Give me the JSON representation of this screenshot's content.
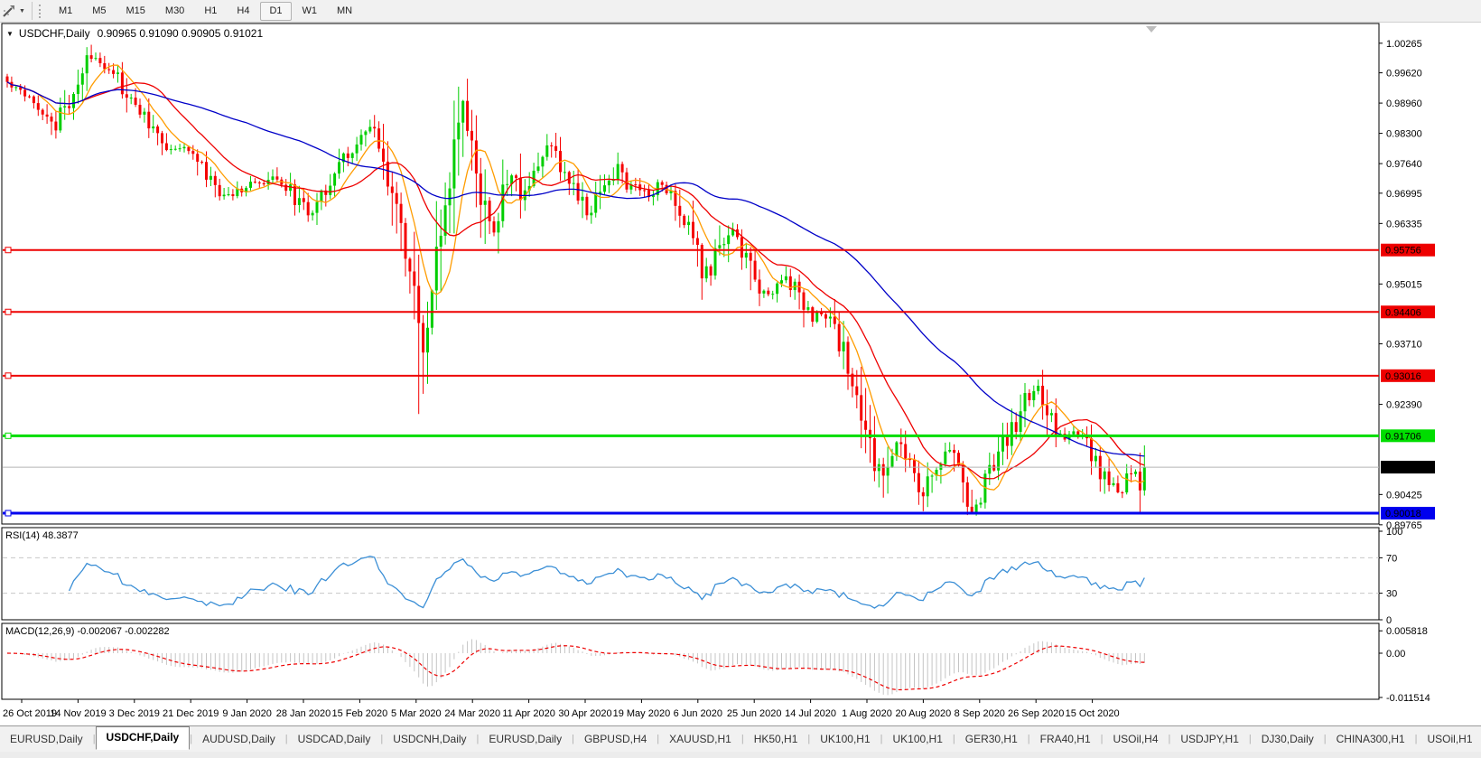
{
  "toolbar": {
    "timeframes": [
      "M1",
      "M5",
      "M15",
      "M30",
      "H1",
      "H4",
      "D1",
      "W1",
      "MN"
    ],
    "active_timeframe": "D1"
  },
  "header": {
    "symbol": "USDCHF,Daily",
    "ohlc": "0.90965 0.91090 0.90905 0.91021"
  },
  "indicators": {
    "rsi_label": "RSI(14) 48.3877",
    "macd_label": "MACD(12,26,9) -0.002067 -0.002282"
  },
  "tabs": {
    "items": [
      "EURUSD,Daily",
      "USDCHF,Daily",
      "AUDUSD,Daily",
      "USDCAD,Daily",
      "USDCNH,Daily",
      "EURUSD,Daily",
      "GBPUSD,H4",
      "XAUUSD,H1",
      "HK50,H1",
      "UK100,H1",
      "UK100,H1",
      "GER30,H1",
      "FRA40,H1",
      "USOil,H4",
      "USDJPY,H1",
      "DJ30,Daily",
      "CHINA300,H1",
      "USOil,H1"
    ],
    "active_index": 1,
    "scroll_left": "◂",
    "scroll_right": "▸"
  },
  "chart_data": {
    "type": "candlestick",
    "symbol": "USDCHF",
    "timeframe": "Daily",
    "ohlc_current": {
      "open": "0.90965",
      "high": "0.91090",
      "low": "0.90905",
      "close": "0.91021"
    },
    "bars": 258,
    "price_axis_ticks": [
      "1.00265",
      "0.99620",
      "0.98960",
      "0.98300",
      "0.97640",
      "0.96995",
      "0.96335",
      "0.95015",
      "0.93710",
      "0.92390",
      "0.90425",
      "0.89765"
    ],
    "date_axis_ticks": [
      "26 Oct 2019",
      "14 Nov 2019",
      "3 Dec 2019",
      "21 Dec 2019",
      "9 Jan 2020",
      "28 Jan 2020",
      "15 Feb 2020",
      "5 Mar 2020",
      "24 Mar 2020",
      "11 Apr 2020",
      "30 Apr 2020",
      "19 May 2020",
      "6 Jun 2020",
      "25 Jun 2020",
      "14 Jul 2020",
      "1 Aug 2020",
      "20 Aug 2020",
      "8 Sep 2020",
      "26 Sep 2020",
      "15 Oct 2020"
    ],
    "hlines": [
      {
        "price": 0.95756,
        "label": "0.95756",
        "color": "#ee0000",
        "width": 2
      },
      {
        "price": 0.94406,
        "label": "0.94406",
        "color": "#ee0000",
        "width": 2
      },
      {
        "price": 0.93016,
        "label": "0.93016",
        "color": "#ee0000",
        "width": 2
      },
      {
        "price": 0.91706,
        "label": "0.91706",
        "color": "#00dd00",
        "width": 3
      },
      {
        "price": 0.90018,
        "label": "0.90018",
        "color": "#0000ee",
        "width": 3
      }
    ],
    "current_price": {
      "value": 0.91021,
      "label": "0.91021",
      "line_color": "#b4b4b4",
      "label_bg": "#000000"
    },
    "close_anchors": [
      [
        0,
        0.994
      ],
      [
        3,
        0.9928
      ],
      [
        6,
        0.9905
      ],
      [
        9,
        0.9868
      ],
      [
        11,
        0.984
      ],
      [
        13,
        0.9885
      ],
      [
        16,
        0.994
      ],
      [
        19,
        1.0
      ],
      [
        21,
        0.999
      ],
      [
        24,
        0.9965
      ],
      [
        27,
        0.9905
      ],
      [
        30,
        0.988
      ],
      [
        33,
        0.9838
      ],
      [
        36,
        0.98
      ],
      [
        39,
        0.9792
      ],
      [
        41,
        0.98
      ],
      [
        44,
        0.9748
      ],
      [
        47,
        0.9712
      ],
      [
        49,
        0.969
      ],
      [
        52,
        0.9706
      ],
      [
        55,
        0.9722
      ],
      [
        58,
        0.9714
      ],
      [
        61,
        0.9737
      ],
      [
        63,
        0.9715
      ],
      [
        66,
        0.9678
      ],
      [
        68,
        0.9656
      ],
      [
        71,
        0.97
      ],
      [
        74,
        0.9746
      ],
      [
        77,
        0.9788
      ],
      [
        80,
        0.9816
      ],
      [
        82,
        0.984
      ],
      [
        84,
        0.9798
      ],
      [
        86,
        0.9735
      ],
      [
        88,
        0.9655
      ],
      [
        90,
        0.9575
      ],
      [
        92,
        0.947
      ],
      [
        93,
        0.942
      ],
      [
        94,
        0.933
      ],
      [
        95,
        0.943
      ],
      [
        97,
        0.9555
      ],
      [
        99,
        0.9672
      ],
      [
        101,
        0.979
      ],
      [
        103,
        0.9885
      ],
      [
        104,
        0.9845
      ],
      [
        106,
        0.9748
      ],
      [
        108,
        0.965
      ],
      [
        110,
        0.9618
      ],
      [
        112,
        0.9698
      ],
      [
        114,
        0.9742
      ],
      [
        116,
        0.968
      ],
      [
        118,
        0.9712
      ],
      [
        120,
        0.9762
      ],
      [
        122,
        0.9808
      ],
      [
        124,
        0.9775
      ],
      [
        126,
        0.9742
      ],
      [
        128,
        0.9718
      ],
      [
        130,
        0.9668
      ],
      [
        132,
        0.9652
      ],
      [
        134,
        0.9708
      ],
      [
        136,
        0.9728
      ],
      [
        138,
        0.9754
      ],
      [
        140,
        0.9722
      ],
      [
        142,
        0.9714
      ],
      [
        145,
        0.97
      ],
      [
        147,
        0.9718
      ],
      [
        150,
        0.9702
      ],
      [
        152,
        0.9662
      ],
      [
        154,
        0.9618
      ],
      [
        155,
        0.9592
      ],
      [
        157,
        0.954
      ],
      [
        159,
        0.9518
      ],
      [
        161,
        0.9578
      ],
      [
        163,
        0.9618
      ],
      [
        165,
        0.9598
      ],
      [
        167,
        0.9558
      ],
      [
        168,
        0.9522
      ],
      [
        170,
        0.9492
      ],
      [
        172,
        0.9476
      ],
      [
        174,
        0.9502
      ],
      [
        176,
        0.952
      ],
      [
        178,
        0.9492
      ],
      [
        180,
        0.9452
      ],
      [
        182,
        0.9432
      ],
      [
        184,
        0.944
      ],
      [
        186,
        0.9412
      ],
      [
        188,
        0.9372
      ],
      [
        190,
        0.9322
      ],
      [
        192,
        0.9252
      ],
      [
        194,
        0.9172
      ],
      [
        196,
        0.9112
      ],
      [
        197,
        0.9078
      ],
      [
        199,
        0.9128
      ],
      [
        201,
        0.9152
      ],
      [
        203,
        0.9122
      ],
      [
        205,
        0.9086
      ],
      [
        207,
        0.9042
      ],
      [
        209,
        0.9088
      ],
      [
        211,
        0.9128
      ],
      [
        213,
        0.9146
      ],
      [
        215,
        0.9102
      ],
      [
        217,
        0.9044
      ],
      [
        218,
        0.9008
      ],
      [
        219,
        0.9016
      ],
      [
        221,
        0.9082
      ],
      [
        223,
        0.9112
      ],
      [
        225,
        0.915
      ],
      [
        227,
        0.9182
      ],
      [
        229,
        0.9222
      ],
      [
        231,
        0.9262
      ],
      [
        233,
        0.9282
      ],
      [
        235,
        0.9232
      ],
      [
        237,
        0.9182
      ],
      [
        239,
        0.9172
      ],
      [
        241,
        0.9176
      ],
      [
        243,
        0.9162
      ],
      [
        245,
        0.9132
      ],
      [
        247,
        0.9092
      ],
      [
        249,
        0.9062
      ],
      [
        251,
        0.9046
      ],
      [
        253,
        0.9072
      ],
      [
        255,
        0.909
      ],
      [
        256,
        0.9062
      ],
      [
        257,
        0.91021
      ]
    ],
    "high_overrides": {
      "18": 1.0018,
      "103": 0.9903,
      "233": 0.9293
    },
    "low_overrides": {
      "93": 0.9218,
      "94": 0.9262,
      "197": 0.9058,
      "207": 0.9006,
      "218": 0.9
    },
    "moving_averages": [
      {
        "period": 8,
        "color": "#ff9c00"
      },
      {
        "period": 18,
        "color": "#ee0000"
      },
      {
        "period": 55,
        "color": "#0000c8"
      }
    ],
    "rsi": {
      "period": 14,
      "value": 48.3877,
      "levels": [
        30,
        70
      ],
      "ticks": [
        "100",
        "70",
        "30",
        "0"
      ],
      "color": "#3b8fd6"
    },
    "macd": {
      "fast": 12,
      "slow": 26,
      "signal": 9,
      "macd_value": -0.002067,
      "signal_value": -0.002282,
      "ticks": [
        "0.005818",
        "0.00",
        "-0.011514"
      ],
      "hist_color": "#c4c4c4",
      "signal_color": "#ee0000"
    },
    "colors": {
      "up": "#00ce00",
      "down": "#f50000",
      "background": "#ffffff",
      "axis": "#000000"
    }
  }
}
